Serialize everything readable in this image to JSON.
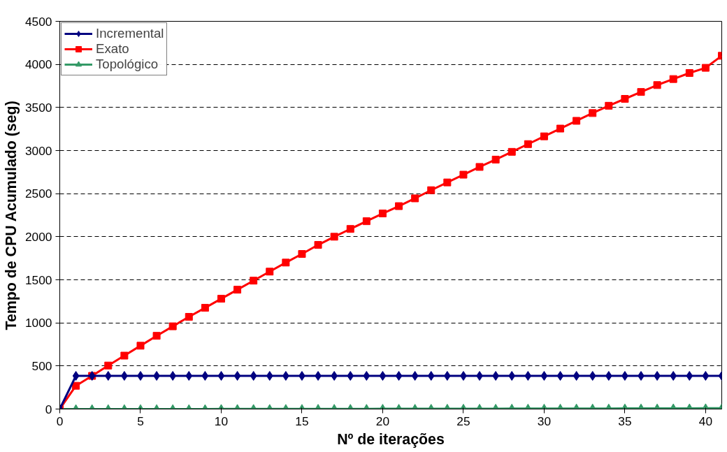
{
  "chart_data": {
    "type": "line",
    "xlabel": "Nº de iterações",
    "ylabel": "Tempo de CPU Acumulado (seg)",
    "x": [
      0,
      1,
      2,
      3,
      4,
      5,
      6,
      7,
      8,
      9,
      10,
      11,
      12,
      13,
      14,
      15,
      16,
      17,
      18,
      19,
      20,
      21,
      22,
      23,
      24,
      25,
      26,
      27,
      28,
      29,
      30,
      31,
      32,
      33,
      34,
      35,
      36,
      37,
      38,
      39,
      40,
      41
    ],
    "series": [
      {
        "name": "Incremental",
        "color": "#000080",
        "marker": "diamond",
        "values": [
          0,
          385,
          385,
          385,
          385,
          385,
          385,
          385,
          385,
          385,
          385,
          385,
          385,
          385,
          385,
          385,
          385,
          385,
          385,
          385,
          385,
          385,
          385,
          385,
          385,
          385,
          385,
          385,
          385,
          385,
          385,
          385,
          385,
          385,
          385,
          385,
          385,
          385,
          385,
          385,
          385,
          385
        ]
      },
      {
        "name": "Exato",
        "color": "#ff0000",
        "marker": "square",
        "values": [
          0,
          270,
          385,
          505,
          620,
          735,
          850,
          960,
          1070,
          1175,
          1280,
          1385,
          1490,
          1595,
          1700,
          1800,
          1905,
          2000,
          2090,
          2180,
          2270,
          2355,
          2445,
          2540,
          2630,
          2720,
          2810,
          2895,
          2985,
          3075,
          3165,
          3255,
          3345,
          3435,
          3520,
          3600,
          3680,
          3760,
          3830,
          3900,
          3960,
          4100
        ]
      },
      {
        "name": "Topológico",
        "color": "#339966",
        "marker": "triangle",
        "values": [
          0,
          0,
          0,
          0,
          0,
          0,
          0,
          0,
          0,
          0,
          2,
          2,
          2,
          2,
          2,
          2,
          3,
          3,
          3,
          3,
          4,
          4,
          4,
          4,
          5,
          5,
          5,
          5,
          6,
          6,
          6,
          6,
          7,
          7,
          7,
          8,
          8,
          8,
          9,
          9,
          10,
          10
        ]
      }
    ],
    "xlim": [
      0,
      41
    ],
    "xticks": [
      0,
      5,
      10,
      15,
      20,
      25,
      30,
      35,
      40
    ],
    "ylim": [
      0,
      4500
    ],
    "yticks": [
      0,
      500,
      1000,
      1500,
      2000,
      2500,
      3000,
      3500,
      4000,
      4500
    ],
    "grid": "y",
    "legend": "top left",
    "line_style": "solid"
  }
}
